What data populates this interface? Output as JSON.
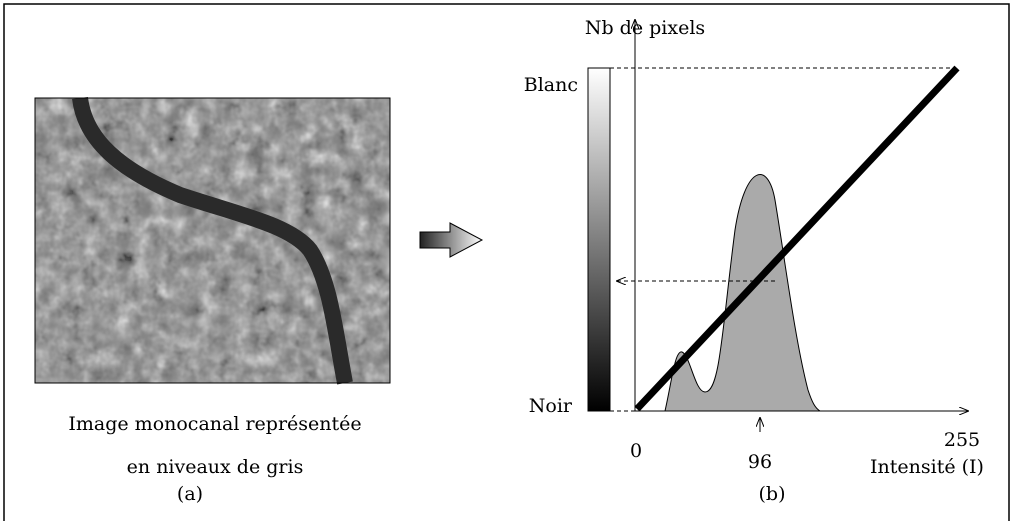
{
  "left": {
    "caption_line1": "Image monocanal représentée",
    "caption_line2": "en niveaux de gris",
    "label": "(a)"
  },
  "right": {
    "y_axis_label": "Nb de pixels",
    "top_level": "Blanc",
    "bottom_level": "Noir",
    "x_origin": "0",
    "x_mark": "96",
    "x_end": "255",
    "x_axis_label": "Intensité (I)",
    "label": "(b)"
  }
}
